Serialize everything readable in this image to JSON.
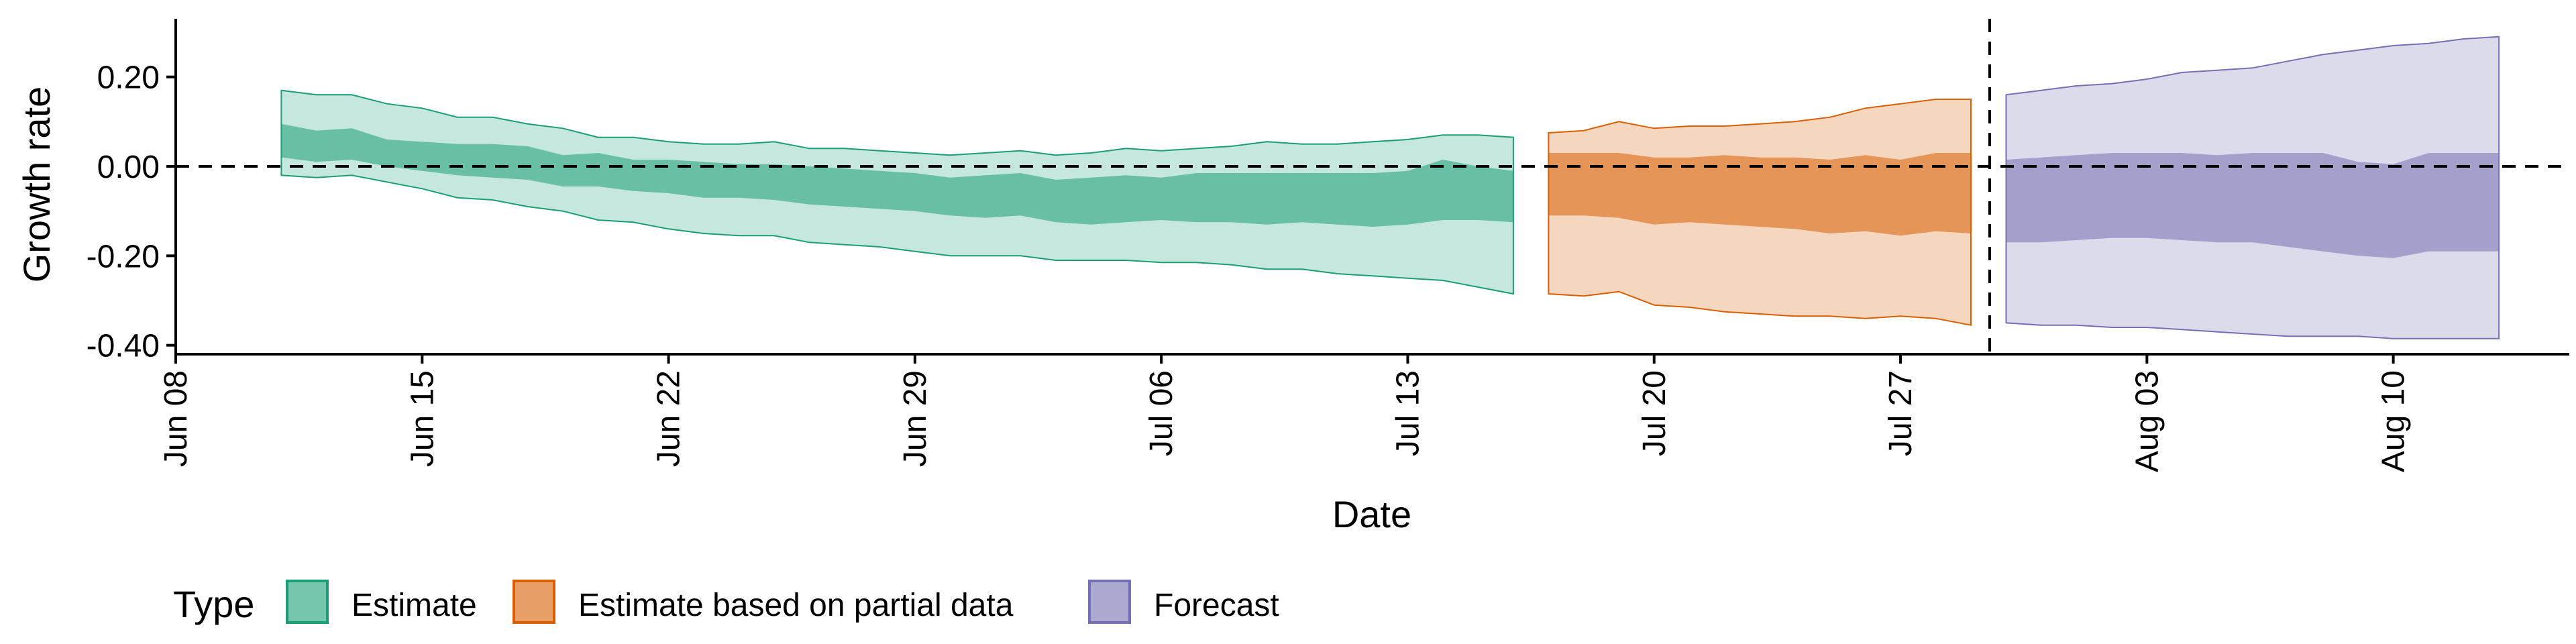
{
  "chart_data": {
    "type": "area",
    "xlabel": "Date",
    "ylabel": "Growth rate",
    "x_range": [
      "2020-06-08",
      "2020-08-15"
    ],
    "ylim": [
      -0.42,
      0.33
    ],
    "x_ticks": [
      {
        "date": "2020-06-08",
        "label": "Jun 08"
      },
      {
        "date": "2020-06-15",
        "label": "Jun 15"
      },
      {
        "date": "2020-06-22",
        "label": "Jun 22"
      },
      {
        "date": "2020-06-29",
        "label": "Jun 29"
      },
      {
        "date": "2020-07-06",
        "label": "Jul 06"
      },
      {
        "date": "2020-07-13",
        "label": "Jul 13"
      },
      {
        "date": "2020-07-20",
        "label": "Jul 20"
      },
      {
        "date": "2020-07-27",
        "label": "Jul 27"
      },
      {
        "date": "2020-08-03",
        "label": "Aug 03"
      },
      {
        "date": "2020-08-10",
        "label": "Aug 10"
      }
    ],
    "y_ticks": [
      {
        "value": 0.2,
        "label": "0.20"
      },
      {
        "value": 0.0,
        "label": "0.00"
      },
      {
        "value": -0.2,
        "label": "-0.20"
      },
      {
        "value": -0.4,
        "label": "-0.40"
      }
    ],
    "reference_lines": {
      "horizontal_y": 0.0,
      "vertical_x": "2020-07-29"
    },
    "grid": false,
    "legend": {
      "title": "Type",
      "position": "bottom-left"
    },
    "series": [
      {
        "name": "Estimate",
        "color": "#1B9E77",
        "x": [
          "2020-06-11",
          "2020-06-12",
          "2020-06-13",
          "2020-06-14",
          "2020-06-15",
          "2020-06-16",
          "2020-06-17",
          "2020-06-18",
          "2020-06-19",
          "2020-06-20",
          "2020-06-21",
          "2020-06-22",
          "2020-06-23",
          "2020-06-24",
          "2020-06-25",
          "2020-06-26",
          "2020-06-27",
          "2020-06-28",
          "2020-06-29",
          "2020-06-30",
          "2020-07-01",
          "2020-07-02",
          "2020-07-03",
          "2020-07-04",
          "2020-07-05",
          "2020-07-06",
          "2020-07-07",
          "2020-07-08",
          "2020-07-09",
          "2020-07-10",
          "2020-07-11",
          "2020-07-12",
          "2020-07-13",
          "2020-07-14",
          "2020-07-15",
          "2020-07-16"
        ],
        "lower90": [
          -0.02,
          -0.025,
          -0.02,
          -0.035,
          -0.05,
          -0.07,
          -0.075,
          -0.09,
          -0.1,
          -0.12,
          -0.125,
          -0.14,
          -0.15,
          -0.155,
          -0.155,
          -0.17,
          -0.175,
          -0.18,
          -0.19,
          -0.2,
          -0.2,
          -0.2,
          -0.21,
          -0.21,
          -0.21,
          -0.215,
          -0.215,
          -0.22,
          -0.23,
          -0.23,
          -0.24,
          -0.245,
          -0.25,
          -0.255,
          -0.27,
          -0.285
        ],
        "upper90": [
          0.17,
          0.16,
          0.16,
          0.14,
          0.13,
          0.11,
          0.11,
          0.095,
          0.085,
          0.065,
          0.065,
          0.055,
          0.05,
          0.05,
          0.055,
          0.04,
          0.04,
          0.035,
          0.03,
          0.025,
          0.03,
          0.035,
          0.025,
          0.03,
          0.04,
          0.035,
          0.04,
          0.045,
          0.055,
          0.05,
          0.05,
          0.055,
          0.06,
          0.07,
          0.07,
          0.065
        ],
        "lower50": [
          0.02,
          0.01,
          0.015,
          0.0,
          -0.01,
          -0.02,
          -0.025,
          -0.03,
          -0.045,
          -0.045,
          -0.055,
          -0.06,
          -0.07,
          -0.07,
          -0.075,
          -0.085,
          -0.09,
          -0.095,
          -0.1,
          -0.11,
          -0.115,
          -0.11,
          -0.125,
          -0.13,
          -0.125,
          -0.12,
          -0.125,
          -0.125,
          -0.13,
          -0.125,
          -0.13,
          -0.135,
          -0.13,
          -0.12,
          -0.12,
          -0.125
        ],
        "upper50": [
          0.095,
          0.08,
          0.085,
          0.06,
          0.055,
          0.05,
          0.05,
          0.045,
          0.025,
          0.03,
          0.015,
          0.015,
          0.01,
          0.005,
          0.005,
          0.0,
          -0.005,
          -0.01,
          -0.015,
          -0.025,
          -0.02,
          -0.015,
          -0.03,
          -0.025,
          -0.02,
          -0.025,
          -0.015,
          -0.015,
          -0.015,
          -0.015,
          -0.015,
          -0.015,
          -0.01,
          0.015,
          0.0,
          -0.01
        ]
      },
      {
        "name": "Estimate based on partial data",
        "color": "#D95F02",
        "x": [
          "2020-07-17",
          "2020-07-18",
          "2020-07-19",
          "2020-07-20",
          "2020-07-21",
          "2020-07-22",
          "2020-07-23",
          "2020-07-24",
          "2020-07-25",
          "2020-07-26",
          "2020-07-27",
          "2020-07-28",
          "2020-07-29"
        ],
        "lower90": [
          -0.285,
          -0.29,
          -0.28,
          -0.31,
          -0.315,
          -0.325,
          -0.33,
          -0.335,
          -0.335,
          -0.34,
          -0.335,
          -0.34,
          -0.355
        ],
        "upper90": [
          0.075,
          0.08,
          0.1,
          0.085,
          0.09,
          0.09,
          0.095,
          0.1,
          0.11,
          0.13,
          0.14,
          0.15,
          0.15
        ],
        "lower50": [
          -0.11,
          -0.11,
          -0.115,
          -0.13,
          -0.125,
          -0.13,
          -0.135,
          -0.14,
          -0.15,
          -0.145,
          -0.155,
          -0.145,
          -0.15
        ],
        "upper50": [
          0.03,
          0.03,
          0.03,
          0.02,
          0.02,
          0.025,
          0.02,
          0.02,
          0.015,
          0.025,
          0.015,
          0.03,
          0.03
        ]
      },
      {
        "name": "Forecast",
        "color": "#7570B3",
        "x": [
          "2020-07-30",
          "2020-07-31",
          "2020-08-01",
          "2020-08-02",
          "2020-08-03",
          "2020-08-04",
          "2020-08-05",
          "2020-08-06",
          "2020-08-07",
          "2020-08-08",
          "2020-08-09",
          "2020-08-10",
          "2020-08-11",
          "2020-08-12",
          "2020-08-13"
        ],
        "lower90": [
          -0.35,
          -0.355,
          -0.355,
          -0.36,
          -0.36,
          -0.365,
          -0.37,
          -0.375,
          -0.38,
          -0.38,
          -0.38,
          -0.385,
          -0.385,
          -0.385,
          -0.385
        ],
        "upper90": [
          0.16,
          0.17,
          0.18,
          0.185,
          0.195,
          0.21,
          0.215,
          0.22,
          0.235,
          0.25,
          0.26,
          0.27,
          0.275,
          0.285,
          0.29
        ],
        "lower50": [
          -0.17,
          -0.17,
          -0.165,
          -0.16,
          -0.16,
          -0.165,
          -0.17,
          -0.17,
          -0.18,
          -0.19,
          -0.2,
          -0.205,
          -0.19,
          -0.19,
          -0.19
        ],
        "upper50": [
          0.015,
          0.02,
          0.025,
          0.03,
          0.03,
          0.03,
          0.025,
          0.03,
          0.03,
          0.03,
          0.01,
          0.005,
          0.03,
          0.03,
          0.03
        ]
      }
    ]
  }
}
